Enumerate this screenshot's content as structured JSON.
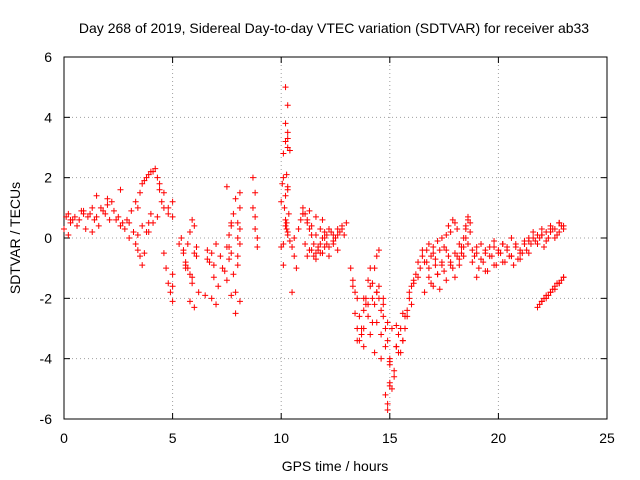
{
  "chart_data": {
    "type": "scatter",
    "title": "Day 268 of 2019, Sidereal Day-to-day VTEC variation (SDTVAR) for receiver ab33",
    "xlabel": "GPS time / hours",
    "ylabel": "SDTVAR / TECUs",
    "xlim": [
      0,
      25
    ],
    "ylim": [
      -6,
      6
    ],
    "xticks": [
      0,
      5,
      10,
      15,
      20,
      25
    ],
    "xtick_labels": [
      "0",
      "5",
      "10",
      "15",
      "20",
      "25"
    ],
    "yticks": [
      -6,
      -4,
      -2,
      0,
      2,
      4,
      6
    ],
    "ytick_labels": [
      "-6",
      "-4",
      "-2",
      "0",
      "2",
      "4",
      "6"
    ],
    "grid": true,
    "marker": "+",
    "color": "#ff0000",
    "series": [
      {
        "name": "SDTVAR",
        "x": [
          0.0,
          0.1,
          0.2,
          0.3,
          0.5,
          0.7,
          0.9,
          1.1,
          1.3,
          1.5,
          1.7,
          1.9,
          2.1,
          2.3,
          2.5,
          2.7,
          2.9,
          3.1,
          3.3,
          3.5,
          3.7,
          3.9,
          4.1,
          4.3,
          4.4,
          4.5,
          4.6,
          4.8,
          5.0,
          0.3,
          0.6,
          0.9,
          1.2,
          1.4,
          1.6,
          1.8,
          2.0,
          2.2,
          2.4,
          2.6,
          2.8,
          3.0,
          3.2,
          3.4,
          3.6,
          3.8,
          4.0,
          4.2,
          4.4,
          4.6,
          4.8,
          5.0,
          3.3,
          3.4,
          3.5,
          3.6,
          3.7,
          3.8,
          3.9,
          4.0,
          4.6,
          4.7,
          4.8,
          4.9,
          5.0,
          5.0,
          5.0,
          0.2,
          0.4,
          0.8,
          1.0,
          1.3,
          1.5,
          2.0,
          2.6,
          3.0,
          3.4,
          3.6,
          3.9,
          4.1,
          4.3,
          5.4,
          5.5,
          5.6,
          5.7,
          5.8,
          5.9,
          6.0,
          6.1,
          5.5,
          5.7,
          5.9,
          6.1,
          5.6,
          5.8,
          6.0,
          5.3,
          5.6,
          5.9,
          6.2,
          5.8,
          6.0,
          6.5,
          6.6,
          6.7,
          6.8,
          6.9,
          7.0,
          7.2,
          7.3,
          6.6,
          6.9,
          7.1,
          6.8,
          7.0,
          7.4,
          7.5,
          7.6,
          7.7,
          7.8,
          7.9,
          8.0,
          8.1,
          7.6,
          7.8,
          8.0,
          7.7,
          7.9,
          8.1,
          7.5,
          7.7,
          7.9,
          8.0,
          8.1,
          8.0,
          8.1,
          8.1,
          7.5,
          7.6,
          7.7,
          8.7,
          8.8,
          8.9,
          8.8,
          8.9,
          8.7,
          8.8,
          10.0,
          10.05,
          10.1,
          10.15,
          10.2,
          10.25,
          10.3,
          10.35,
          10.4,
          10.1,
          10.2,
          10.3,
          10.4,
          10.1,
          10.2,
          10.3,
          10.2,
          10.3,
          10.2,
          10.3,
          10.3,
          10.2,
          10.3,
          10.25,
          10.25,
          10.3,
          10.0,
          10.1,
          10.5,
          10.6,
          10.7,
          10.5,
          10.6,
          10.8,
          10.9,
          11.0,
          11.1,
          11.2,
          11.3,
          11.4,
          11.5,
          11.6,
          11.7,
          11.8,
          11.9,
          12.0,
          12.1,
          12.2,
          12.3,
          12.4,
          12.5,
          12.6,
          12.7,
          12.8,
          12.9,
          13.0,
          11.0,
          11.2,
          11.4,
          11.6,
          11.8,
          12.0,
          12.2,
          12.4,
          12.6,
          12.8,
          11.1,
          11.3,
          11.5,
          11.7,
          11.9,
          12.1,
          11.2,
          11.4,
          11.6,
          11.8,
          12.0,
          12.2,
          12.4,
          12.6,
          11.0,
          11.3,
          11.6,
          11.9,
          13.2,
          13.3,
          13.4,
          13.5,
          13.6,
          13.7,
          13.8,
          13.9,
          14.0,
          14.1,
          14.2,
          14.3,
          14.4,
          14.5,
          14.6,
          14.7,
          14.8,
          14.9,
          15.0,
          15.1,
          15.2,
          15.3,
          15.4,
          15.5,
          15.6,
          15.7,
          15.8,
          15.9,
          16.0,
          16.1,
          16.2,
          16.3,
          16.4,
          16.5,
          16.6,
          16.7,
          13.3,
          13.5,
          13.7,
          13.9,
          14.1,
          14.3,
          14.5,
          14.7,
          14.9,
          15.1,
          15.3,
          15.5,
          15.7,
          15.9,
          16.1,
          16.3,
          16.5,
          13.4,
          13.6,
          13.8,
          14.0,
          14.2,
          14.4,
          14.6,
          14.8,
          15.0,
          15.2,
          15.4,
          15.6,
          15.8,
          16.0,
          13.5,
          13.8,
          14.1,
          14.4,
          14.7,
          15.0,
          15.3,
          15.6,
          14.8,
          14.9,
          15.0,
          14.9,
          15.0,
          13.8,
          14.0,
          14.2,
          14.4,
          14.5,
          14.3,
          14.6,
          16.7,
          16.8,
          16.9,
          17.0,
          17.1,
          17.2,
          17.3,
          17.4,
          17.5,
          17.6,
          17.7,
          17.8,
          17.9,
          18.0,
          18.1,
          18.2,
          18.3,
          18.4,
          18.5,
          18.6,
          18.7,
          16.8,
          17.0,
          17.2,
          17.4,
          17.6,
          17.8,
          18.0,
          18.2,
          18.4,
          18.6,
          16.9,
          17.1,
          17.3,
          17.5,
          17.7,
          17.9,
          18.1,
          18.3,
          18.5,
          16.6,
          16.8,
          17.0,
          17.2,
          17.4,
          17.6,
          17.8,
          18.0,
          18.2,
          18.4,
          18.8,
          19.0,
          19.2,
          19.4,
          19.6,
          19.8,
          20.0,
          20.2,
          20.4,
          20.6,
          20.8,
          21.0,
          21.2,
          21.4,
          21.6,
          21.8,
          22.0,
          22.2,
          22.4,
          22.6,
          22.8,
          23.0,
          18.8,
          19.0,
          19.2,
          19.4,
          19.6,
          19.8,
          20.0,
          20.2,
          20.4,
          20.6,
          20.8,
          21.0,
          21.2,
          21.4,
          21.6,
          21.8,
          22.0,
          22.2,
          22.4,
          22.6,
          22.8,
          23.0,
          18.9,
          19.1,
          19.3,
          19.5,
          19.7,
          19.9,
          20.1,
          20.3,
          20.5,
          20.7,
          20.9,
          21.1,
          21.3,
          21.5,
          21.7,
          21.9,
          22.1,
          22.3,
          22.5,
          22.7,
          22.9,
          19.0,
          19.4,
          19.8,
          20.2,
          20.6,
          21.0,
          21.4,
          22.0,
          22.4,
          22.8,
          21.8,
          21.9,
          22.0,
          22.1,
          22.2,
          22.3,
          22.4,
          22.5,
          22.6,
          22.7,
          22.8,
          22.9,
          23.0,
          22.0,
          22.2,
          22.4,
          22.6,
          22.8,
          23.0,
          18.6,
          18.5,
          18.7
        ],
        "y": [
          0.3,
          0.7,
          0.8,
          0.6,
          0.7,
          0.6,
          0.8,
          0.7,
          1.0,
          0.7,
          1.0,
          0.8,
          0.6,
          0.9,
          0.7,
          0.5,
          0.6,
          0.9,
          1.2,
          1.5,
          1.9,
          2.1,
          2.2,
          2.0,
          1.6,
          1.2,
          1.0,
          0.8,
          1.2,
          0.5,
          0.4,
          0.9,
          0.8,
          0.6,
          0.4,
          0.9,
          1.1,
          1.2,
          0.6,
          0.4,
          0.3,
          0.5,
          0.2,
          1.0,
          1.8,
          2.0,
          2.2,
          2.3,
          1.8,
          1.5,
          1.0,
          0.7,
          -0.2,
          -0.4,
          -0.6,
          -0.9,
          -0.5,
          0.2,
          0.5,
          0.8,
          -0.5,
          -1.0,
          -1.5,
          -1.8,
          -2.1,
          -1.6,
          -1.2,
          0.1,
          0.6,
          0.9,
          0.3,
          0.2,
          1.4,
          1.3,
          1.6,
          0.0,
          0.1,
          0.4,
          0.2,
          0.5,
          0.7,
          0.0,
          -0.4,
          -0.8,
          -0.2,
          0.2,
          0.6,
          0.4,
          -0.3,
          -0.5,
          -1.0,
          -1.3,
          -0.6,
          -0.9,
          -1.2,
          -0.5,
          -0.2,
          -1.0,
          -1.5,
          -1.8,
          -2.1,
          -2.3,
          -1.9,
          -0.4,
          -0.8,
          -0.5,
          -0.9,
          -0.2,
          -0.6,
          -1.0,
          -0.7,
          -1.3,
          -1.6,
          -2.0,
          -2.2,
          -1.1,
          -0.3,
          0.1,
          0.4,
          0.8,
          1.3,
          0.5,
          -0.2,
          -0.7,
          -1.2,
          -0.9,
          -0.5,
          -1.8,
          -2.1,
          -1.4,
          -1.9,
          -2.5,
          0.0,
          0.3,
          -0.6,
          1.0,
          1.5,
          1.7,
          -0.3,
          0.5,
          1.0,
          0.7,
          0.0,
          0.3,
          -0.3,
          2.0,
          1.5,
          1.2,
          1.8,
          2.0,
          1.0,
          0.6,
          0.3,
          0.2,
          0.8,
          -0.1,
          -0.2,
          0.4,
          3.0,
          2.9,
          2.8,
          3.8,
          4.4,
          5.0,
          1.6,
          1.4,
          3.3,
          3.5,
          3.2,
          1.7,
          2.1,
          0.5,
          0.1,
          -0.3,
          -0.9,
          -1.8,
          -0.6,
          -1.0,
          -0.3,
          0.0,
          0.3,
          0.6,
          1.0,
          0.8,
          0.5,
          0.3,
          0.1,
          -0.2,
          -0.5,
          -0.4,
          -0.2,
          0.0,
          0.2,
          0.1,
          0.3,
          0.2,
          0.1,
          0.0,
          0.3,
          0.2,
          0.4,
          0.1,
          0.5,
          0.8,
          0.6,
          0.4,
          0.1,
          0.3,
          0.0,
          -0.3,
          -0.1,
          0.1,
          0.3,
          -0.2,
          -0.4,
          -0.6,
          -0.3,
          -0.5,
          -0.2,
          -0.6,
          -0.4,
          -0.7,
          -0.5,
          -0.3,
          -0.6,
          -0.2,
          -0.4,
          0.8,
          0.9,
          0.7,
          0.6,
          -1.0,
          -1.6,
          -2.5,
          -3.0,
          -3.4,
          -3.0,
          -2.4,
          -2.0,
          -2.6,
          -3.2,
          -2.8,
          -2.2,
          -1.8,
          -2.0,
          -2.4,
          -2.6,
          -3.0,
          -3.4,
          -4.0,
          -5.0,
          -4.4,
          -3.6,
          -3.2,
          -3.8,
          -3.4,
          -3.0,
          -2.4,
          -2.0,
          -1.6,
          -1.5,
          -1.2,
          -1.3,
          -1.0,
          -0.6,
          -0.8,
          -0.4,
          -1.4,
          -2.0,
          -3.2,
          -2.2,
          -1.6,
          -1.0,
          -1.6,
          -2.0,
          -2.8,
          -3.0,
          -3.6,
          -3.0,
          -2.6,
          -1.8,
          -1.4,
          -0.8,
          -0.4,
          -1.8,
          -2.6,
          -2.0,
          -1.4,
          -2.0,
          -2.8,
          -3.2,
          -3.6,
          -4.2,
          -4.6,
          -3.8,
          -3.4,
          -2.6,
          -2.2,
          -3.4,
          -3.0,
          -1.0,
          -0.6,
          -2.2,
          -4.8,
          -2.9,
          -2.5,
          -5.2,
          -5.7,
          -4.9,
          -5.5,
          -4.1,
          -3.6,
          -2.2,
          -1.5,
          -1.8,
          -0.4,
          -3.8,
          -4.0,
          -0.8,
          -0.2,
          -0.6,
          -0.3,
          -0.7,
          -0.1,
          -0.4,
          0.0,
          -0.3,
          0.1,
          0.4,
          0.2,
          0.6,
          0.5,
          0.3,
          -0.2,
          -0.5,
          0.0,
          0.3,
          0.6,
          0.2,
          -1.0,
          -0.5,
          -1.2,
          -0.9,
          -0.4,
          -0.8,
          -1.3,
          -0.9,
          -0.6,
          -0.2,
          -1.5,
          -0.9,
          -1.7,
          -1.1,
          -0.6,
          -1.0,
          -0.6,
          -0.3,
          0.0,
          -1.8,
          -1.3,
          -1.6,
          -1.2,
          -0.8,
          -1.4,
          -0.9,
          -0.5,
          -0.7,
          -0.3,
          -0.4,
          -0.3,
          -0.2,
          -0.5,
          -0.3,
          -0.1,
          -0.4,
          -0.2,
          -0.3,
          0.0,
          -0.2,
          -0.4,
          -0.1,
          0.0,
          0.2,
          0.1,
          0.3,
          0.2,
          0.4,
          0.3,
          0.5,
          0.4,
          -0.8,
          -0.5,
          -0.7,
          -0.4,
          -0.6,
          -0.3,
          -0.5,
          -0.2,
          -0.4,
          -0.6,
          -0.3,
          -0.5,
          -0.2,
          -0.1,
          0.0,
          -0.2,
          0.1,
          -0.1,
          0.2,
          0.0,
          0.2,
          0.3,
          -0.6,
          -1.0,
          -0.8,
          -1.1,
          -0.6,
          -0.9,
          -0.5,
          -0.8,
          -0.6,
          -0.9,
          -0.7,
          -0.5,
          -0.4,
          -0.2,
          -0.1,
          0.0,
          -0.3,
          0.0,
          0.3,
          0.1,
          0.4,
          -1.3,
          -1.1,
          -0.9,
          -0.8,
          -0.6,
          -0.7,
          -0.5,
          0.1,
          0.3,
          0.5,
          -2.3,
          -2.2,
          -2.1,
          -2.0,
          -2.0,
          -1.9,
          -1.8,
          -1.7,
          -1.6,
          -1.5,
          -1.5,
          -1.4,
          -1.3,
          -2.1,
          -1.9,
          -1.8,
          -1.7,
          -1.5,
          -1.3,
          0.7,
          0.4,
          0.5
        ]
      }
    ]
  }
}
